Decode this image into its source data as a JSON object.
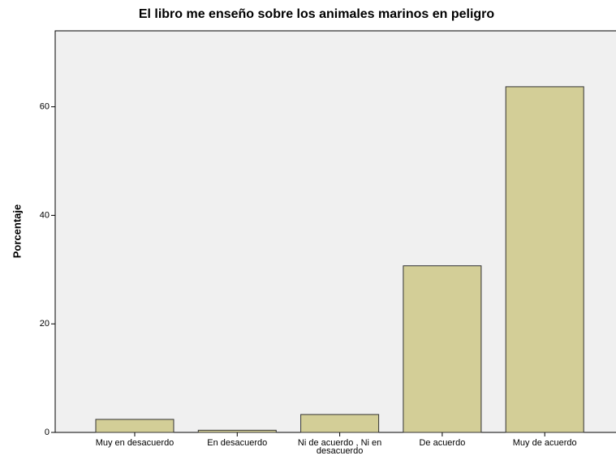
{
  "chart_data": {
    "type": "bar",
    "title": "El libro me enseño sobre los animales marinos en peligro",
    "y_label": "Porcentaje",
    "categories": [
      "Muy en desacuerdo",
      "En desacuerdo",
      "Ni de acuerdo , Ni en desacuerdo",
      "De acuerdo",
      "Muy de acuerdo"
    ],
    "values": [
      2.4,
      0.4,
      3.3,
      30.7,
      63.7
    ],
    "color": "#d3ce97",
    "ylim": [
      0,
      74
    ],
    "yticks": [
      0,
      20,
      40,
      60
    ],
    "grid": false
  }
}
